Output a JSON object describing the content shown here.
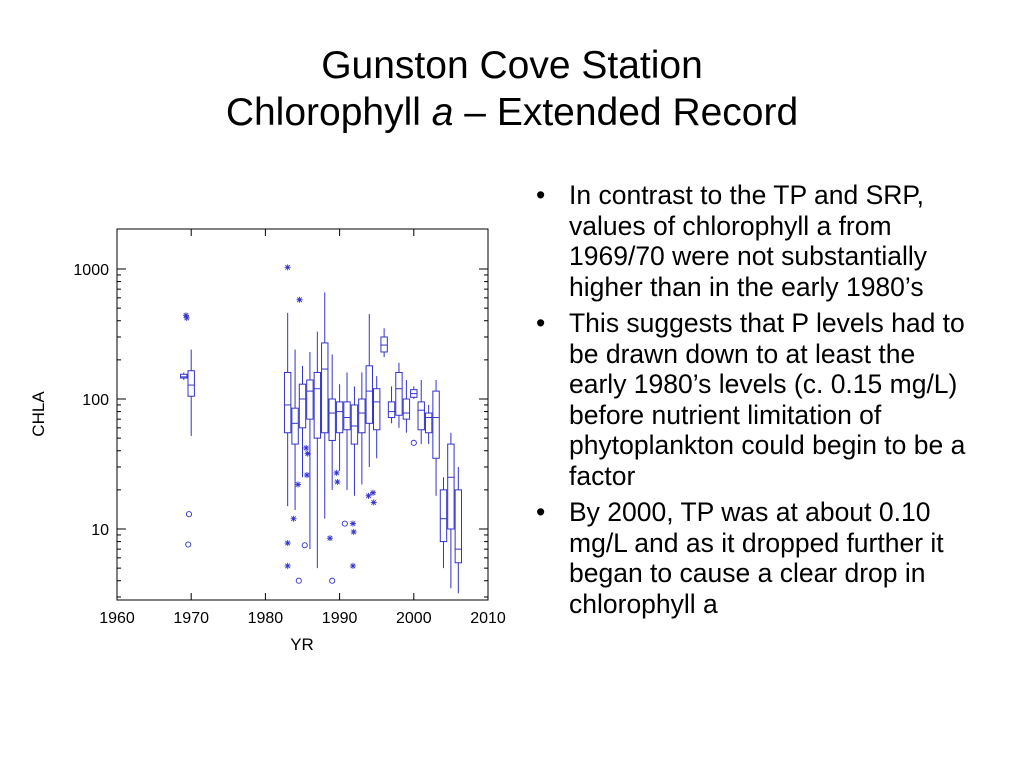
{
  "slide": {
    "title_line1": "Gunston Cove Station",
    "title_line2_prefix": "Chlorophyll ",
    "title_line2_italic": "a",
    "title_line2_suffix": " – Extended Record",
    "bullet_marker": "•",
    "bullets": [
      "In contrast to the TP and SRP, values of chlorophyll a from 1969/70 were not substantially higher than in the early 1980’s",
      "This suggests that P levels had to be drawn down to at least the early 1980’s levels (c. 0.15 mg/L) before nutrient limitation of phytoplankton could begin to be a factor",
      "By 2000, TP was at about 0.10 mg/L and as it dropped further it began to cause a clear drop in chlorophyll a"
    ]
  },
  "chart_data": {
    "type": "box",
    "xlabel": "YR",
    "ylabel": "CHLA",
    "xlim": [
      1960,
      2010
    ],
    "ylim": [
      3,
      1700
    ],
    "yscale": "log",
    "xticks": [
      1960,
      1970,
      1980,
      1990,
      2000,
      2010
    ],
    "yticks": [
      10,
      100,
      1000
    ],
    "ytick_labels": [
      "10",
      "100",
      "1000"
    ],
    "color": "#3333cc",
    "boxes": [
      {
        "year": 1969,
        "min": 140,
        "q1": 145,
        "median": 148,
        "q3": 155,
        "max": 160
      },
      {
        "year": 1970,
        "min": 52,
        "q1": 105,
        "median": 128,
        "q3": 165,
        "max": 240
      },
      {
        "year": 1983,
        "min": 15,
        "q1": 55,
        "median": 90,
        "q3": 160,
        "max": 460
      },
      {
        "year": 1984,
        "min": 14,
        "q1": 45,
        "median": 65,
        "q3": 85,
        "max": 240
      },
      {
        "year": 1985,
        "min": 25,
        "q1": 60,
        "median": 100,
        "q3": 130,
        "max": 180
      },
      {
        "year": 1986,
        "min": 7,
        "q1": 70,
        "median": 115,
        "q3": 140,
        "max": 230
      },
      {
        "year": 1987,
        "min": 5,
        "q1": 50,
        "median": 120,
        "q3": 160,
        "max": 330
      },
      {
        "year": 1988,
        "min": 12,
        "q1": 55,
        "median": 170,
        "q3": 270,
        "max": 660
      },
      {
        "year": 1989,
        "min": 20,
        "q1": 48,
        "median": 78,
        "q3": 100,
        "max": 220
      },
      {
        "year": 1990,
        "min": 28,
        "q1": 55,
        "median": 80,
        "q3": 95,
        "max": 130
      },
      {
        "year": 1991,
        "min": 20,
        "q1": 58,
        "median": 72,
        "q3": 95,
        "max": 160
      },
      {
        "year": 1992,
        "min": 18,
        "q1": 45,
        "median": 62,
        "q3": 90,
        "max": 125
      },
      {
        "year": 1993,
        "min": 22,
        "q1": 55,
        "median": 78,
        "q3": 100,
        "max": 160
      },
      {
        "year": 1994,
        "min": 30,
        "q1": 65,
        "median": 115,
        "q3": 180,
        "max": 450
      },
      {
        "year": 1995,
        "min": 35,
        "q1": 58,
        "median": 95,
        "q3": 120,
        "max": 150
      },
      {
        "year": 1996,
        "min": 210,
        "q1": 230,
        "median": 260,
        "q3": 300,
        "max": 350
      },
      {
        "year": 1997,
        "min": 65,
        "q1": 72,
        "median": 80,
        "q3": 95,
        "max": 125
      },
      {
        "year": 1998,
        "min": 60,
        "q1": 75,
        "median": 120,
        "q3": 160,
        "max": 190
      },
      {
        "year": 1999,
        "min": 55,
        "q1": 70,
        "median": 78,
        "q3": 100,
        "max": 140
      },
      {
        "year": 2000,
        "min": 100,
        "q1": 103,
        "median": 110,
        "q3": 118,
        "max": 125
      },
      {
        "year": 2001,
        "min": 45,
        "q1": 58,
        "median": 82,
        "q3": 95,
        "max": 140
      },
      {
        "year": 2002,
        "min": 45,
        "q1": 55,
        "median": 72,
        "q3": 78,
        "max": 90
      },
      {
        "year": 2003,
        "min": 18,
        "q1": 35,
        "median": 72,
        "q3": 115,
        "max": 140
      },
      {
        "year": 2004,
        "min": 5,
        "q1": 8,
        "median": 12,
        "q3": 20,
        "max": 25
      },
      {
        "year": 2005,
        "min": 3.5,
        "q1": 10,
        "median": 25,
        "q3": 45,
        "max": 55
      },
      {
        "year": 2006,
        "min": 3.2,
        "q1": 5.5,
        "median": 7,
        "q3": 20,
        "max": 30
      }
    ],
    "outliers": [
      {
        "year": 1969.3,
        "value": 440,
        "marker": "star"
      },
      {
        "year": 1969.4,
        "value": 420,
        "marker": "star"
      },
      {
        "year": 1969.7,
        "value": 13,
        "marker": "circle"
      },
      {
        "year": 1969.6,
        "value": 7.6,
        "marker": "circle"
      },
      {
        "year": 1983,
        "value": 1030,
        "marker": "star"
      },
      {
        "year": 1983,
        "value": 7.8,
        "marker": "star"
      },
      {
        "year": 1983,
        "value": 5.2,
        "marker": "star"
      },
      {
        "year": 1984.6,
        "value": 580,
        "marker": "star"
      },
      {
        "year": 1984.4,
        "value": 22,
        "marker": "star"
      },
      {
        "year": 1985.5,
        "value": 42,
        "marker": "star"
      },
      {
        "year": 1985.7,
        "value": 38,
        "marker": "star"
      },
      {
        "year": 1985.6,
        "value": 26,
        "marker": "star"
      },
      {
        "year": 1983.8,
        "value": 12,
        "marker": "star"
      },
      {
        "year": 1985.3,
        "value": 7.5,
        "marker": "circle"
      },
      {
        "year": 1984.5,
        "value": 4,
        "marker": "circle"
      },
      {
        "year": 1988.7,
        "value": 8.5,
        "marker": "star"
      },
      {
        "year": 1989,
        "value": 4,
        "marker": "circle"
      },
      {
        "year": 1989.6,
        "value": 27,
        "marker": "star"
      },
      {
        "year": 1989.7,
        "value": 23,
        "marker": "star"
      },
      {
        "year": 1990.7,
        "value": 11,
        "marker": "circle"
      },
      {
        "year": 1991.8,
        "value": 11,
        "marker": "star"
      },
      {
        "year": 1991.9,
        "value": 9.5,
        "marker": "star"
      },
      {
        "year": 1991.8,
        "value": 5.2,
        "marker": "star"
      },
      {
        "year": 1993.9,
        "value": 18,
        "marker": "star"
      },
      {
        "year": 1994.5,
        "value": 19,
        "marker": "star"
      },
      {
        "year": 1994.6,
        "value": 16,
        "marker": "star"
      },
      {
        "year": 2000,
        "value": 46,
        "marker": "circle"
      }
    ]
  }
}
